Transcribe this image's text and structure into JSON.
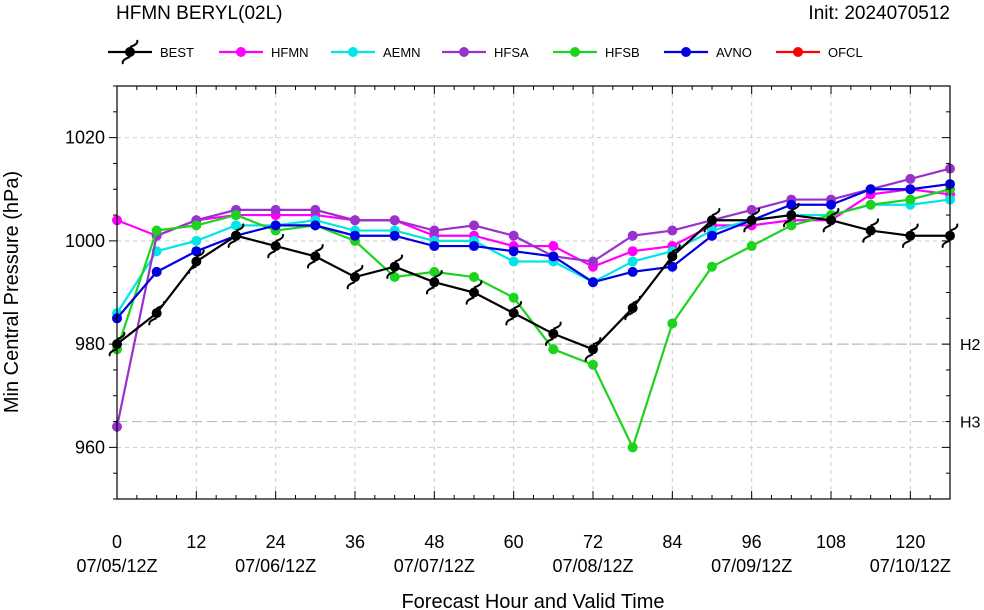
{
  "header": {
    "title": "HFMN BERYL(02L)",
    "init": "Init: 2024070512"
  },
  "chart_data": {
    "type": "line",
    "xlabel": "Forecast Hour and Valid Time",
    "ylabel": "Min Central Pressure (hPa)",
    "xlim": [
      0,
      126
    ],
    "ylim": [
      950,
      1030
    ],
    "grid": true,
    "legend_position": "top",
    "x_ticks": [
      0,
      12,
      24,
      36,
      48,
      60,
      72,
      84,
      96,
      108,
      120
    ],
    "x_tick_dates": [
      "07/05/12Z",
      "07/06/12Z",
      "07/07/12Z",
      "07/08/12Z",
      "07/09/12Z",
      "07/10/12Z"
    ],
    "y_ticks": [
      960,
      980,
      1000,
      1020
    ],
    "reference_lines": [
      {
        "label": "H2",
        "value": 980
      },
      {
        "label": "H3",
        "value": 965
      }
    ],
    "series": [
      {
        "name": "BEST",
        "color": "#000000",
        "marker": "hurricane-symbol",
        "points": [
          [
            0,
            980
          ],
          [
            6,
            986
          ],
          [
            12,
            996
          ],
          [
            18,
            1001
          ],
          [
            24,
            999
          ],
          [
            30,
            997
          ],
          [
            36,
            993
          ],
          [
            42,
            995
          ],
          [
            48,
            992
          ],
          [
            54,
            990
          ],
          [
            60,
            986
          ],
          [
            66,
            982
          ],
          [
            72,
            979
          ],
          [
            78,
            987
          ],
          [
            84,
            997
          ],
          [
            90,
            1004
          ],
          [
            96,
            1004
          ],
          [
            102,
            1005
          ],
          [
            108,
            1004
          ],
          [
            114,
            1002
          ],
          [
            120,
            1001
          ],
          [
            126,
            1001
          ]
        ]
      },
      {
        "name": "HFMN",
        "color": "#ff00ff",
        "marker": "circle",
        "points": [
          [
            0,
            1004
          ],
          [
            6,
            1001
          ],
          [
            12,
            1004
          ],
          [
            18,
            1005
          ],
          [
            24,
            1005
          ],
          [
            30,
            1005
          ],
          [
            36,
            1004
          ],
          [
            42,
            1004
          ],
          [
            48,
            1001
          ],
          [
            54,
            1001
          ],
          [
            60,
            999
          ],
          [
            66,
            999
          ],
          [
            72,
            995
          ],
          [
            78,
            998
          ],
          [
            84,
            999
          ],
          [
            90,
            1003
          ],
          [
            96,
            1003
          ],
          [
            102,
            1004
          ],
          [
            108,
            1004
          ],
          [
            114,
            1009
          ],
          [
            120,
            1010
          ],
          [
            126,
            1009
          ]
        ]
      },
      {
        "name": "AEMN",
        "color": "#00e5e5",
        "marker": "circle",
        "points": [
          [
            0,
            986
          ],
          [
            6,
            998
          ],
          [
            12,
            1000
          ],
          [
            18,
            1003
          ],
          [
            24,
            1003
          ],
          [
            30,
            1004
          ],
          [
            36,
            1002
          ],
          [
            42,
            1002
          ],
          [
            48,
            1000
          ],
          [
            54,
            1000
          ],
          [
            60,
            996
          ],
          [
            66,
            996
          ],
          [
            72,
            992
          ],
          [
            78,
            996
          ],
          [
            84,
            998
          ],
          [
            90,
            1002
          ],
          [
            96,
            1004
          ],
          [
            102,
            1005
          ],
          [
            108,
            1005
          ],
          [
            114,
            1007
          ],
          [
            120,
            1007
          ],
          [
            126,
            1008
          ]
        ]
      },
      {
        "name": "HFSA",
        "color": "#9932cc",
        "marker": "circle",
        "points": [
          [
            0,
            964
          ],
          [
            6,
            1001
          ],
          [
            12,
            1004
          ],
          [
            18,
            1006
          ],
          [
            24,
            1006
          ],
          [
            30,
            1006
          ],
          [
            36,
            1004
          ],
          [
            42,
            1004
          ],
          [
            48,
            1002
          ],
          [
            54,
            1003
          ],
          [
            60,
            1001
          ],
          [
            66,
            997
          ],
          [
            72,
            996
          ],
          [
            78,
            1001
          ],
          [
            84,
            1002
          ],
          [
            90,
            1004
          ],
          [
            96,
            1006
          ],
          [
            102,
            1008
          ],
          [
            108,
            1008
          ],
          [
            114,
            1010
          ],
          [
            120,
            1012
          ],
          [
            126,
            1014
          ]
        ]
      },
      {
        "name": "HFSB",
        "color": "#1ed31e",
        "marker": "circle",
        "points": [
          [
            0,
            979
          ],
          [
            6,
            1002
          ],
          [
            12,
            1003
          ],
          [
            18,
            1005
          ],
          [
            24,
            1002
          ],
          [
            30,
            1003
          ],
          [
            36,
            1000
          ],
          [
            42,
            993
          ],
          [
            48,
            994
          ],
          [
            54,
            993
          ],
          [
            60,
            989
          ],
          [
            66,
            979
          ],
          [
            72,
            976
          ],
          [
            78,
            960
          ],
          [
            84,
            984
          ],
          [
            90,
            995
          ],
          [
            96,
            999
          ],
          [
            102,
            1003
          ],
          [
            108,
            1005
          ],
          [
            114,
            1007
          ],
          [
            120,
            1008
          ],
          [
            126,
            1010
          ]
        ]
      },
      {
        "name": "AVNO",
        "color": "#0000e0",
        "marker": "circle",
        "points": [
          [
            0,
            985
          ],
          [
            6,
            994
          ],
          [
            12,
            998
          ],
          [
            18,
            1001
          ],
          [
            24,
            1003
          ],
          [
            30,
            1003
          ],
          [
            36,
            1001
          ],
          [
            42,
            1001
          ],
          [
            48,
            999
          ],
          [
            54,
            999
          ],
          [
            60,
            998
          ],
          [
            66,
            997
          ],
          [
            72,
            992
          ],
          [
            78,
            994
          ],
          [
            84,
            995
          ],
          [
            90,
            1001
          ],
          [
            96,
            1004
          ],
          [
            102,
            1007
          ],
          [
            108,
            1007
          ],
          [
            114,
            1010
          ],
          [
            120,
            1010
          ],
          [
            126,
            1011
          ]
        ]
      },
      {
        "name": "OFCL",
        "color": "#ff0000",
        "marker": "circle",
        "points": []
      }
    ]
  }
}
